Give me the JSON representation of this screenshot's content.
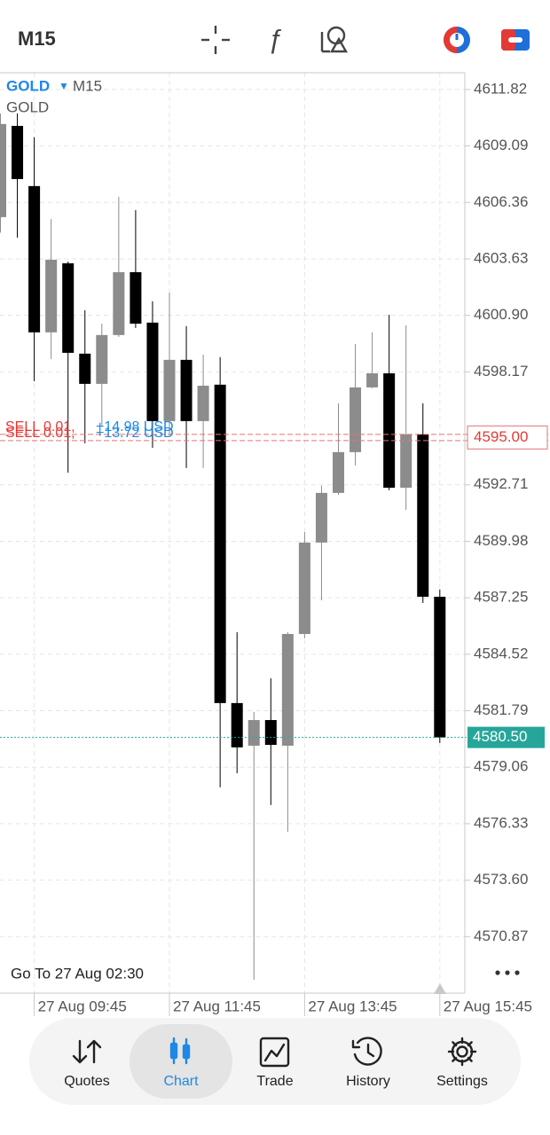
{
  "header": {
    "timeframe": "M15"
  },
  "chart_data": {
    "type": "candlestick",
    "symbol": "GOLD",
    "timeframe": "M15",
    "description": "GOLD",
    "open": [
      4605.65,
      4610.06,
      4607.15,
      4600.08,
      4603.42,
      4599.05,
      4597.59,
      4599.95,
      4602.99,
      4600.55,
      4595.79,
      4598.75,
      4595.79,
      4597.55,
      4582.16,
      4580.1,
      4581.34,
      4580.1,
      4585.5,
      4589.92,
      4592.32,
      4594.29,
      4597.42,
      4598.1,
      4592.57,
      4595.15,
      4587.3
    ],
    "high": [
      4610.66,
      4610.66,
      4609.51,
      4605.56,
      4603.5,
      4601.15,
      4600.5,
      4606.63,
      4605.99,
      4601.58,
      4602.0,
      4600.38,
      4599.0,
      4598.88,
      4585.59,
      4581.73,
      4583.36,
      4585.59,
      4590.43,
      4592.66,
      4596.65,
      4599.52,
      4600.08,
      4600.93,
      4600.42,
      4596.65,
      4587.65
    ],
    "low": [
      4604.9,
      4604.66,
      4597.72,
      4598.79,
      4593.3,
      4594.72,
      4595.58,
      4599.86,
      4600.29,
      4594.5,
      4595.15,
      4593.52,
      4593.52,
      4578.09,
      4578.77,
      4568.79,
      4577.23,
      4575.94,
      4585.29,
      4587.13,
      4592.23,
      4593.65,
      4597.38,
      4592.45,
      4591.5,
      4587.0,
      4580.23
    ],
    "close": [
      4610.15,
      4607.49,
      4600.08,
      4603.59,
      4599.09,
      4597.59,
      4599.95,
      4602.99,
      4600.5,
      4595.79,
      4598.75,
      4595.79,
      4597.5,
      4582.16,
      4580.02,
      4581.34,
      4580.14,
      4585.5,
      4589.92,
      4592.32,
      4594.29,
      4597.42,
      4598.1,
      4592.57,
      4595.15,
      4587.3,
      4580.5
    ],
    "up_color": "#8c8c8c",
    "down_color": "#000000",
    "ylim": [
      4568.14,
      4612.63
    ],
    "yticks": [
      4611.82,
      4609.09,
      4606.36,
      4603.63,
      {
        "value": 4600.9,
        "label": "4600.90"
      },
      4598.17,
      4592.71,
      4589.98,
      4587.25,
      4584.52,
      4581.79,
      4579.06,
      4576.33,
      {
        "value": 4573.6,
        "label": "4573.60"
      },
      4570.87
    ],
    "xticks": [
      {
        "value": 2,
        "label": "27 Aug 09:45"
      },
      {
        "value": 10,
        "label": "27 Aug 11:45"
      },
      {
        "value": 18,
        "label": "27 Aug 13:45"
      },
      {
        "value": 26,
        "label": "27 Aug 15:45"
      }
    ],
    "grid": true,
    "orders": [
      {
        "side": "SELL 0.01,",
        "profit": "+14.98 USD",
        "price": 4595.15
      },
      {
        "side": "SELL 0.01,",
        "profit": "+13.72 USD",
        "price": 4594.85
      }
    ],
    "order_price": {
      "value": 4595.0,
      "label": "4595.00"
    },
    "bid": {
      "value": 4580.5,
      "label": "4580.50"
    }
  },
  "goto": "Go To 27 Aug 02:30",
  "nav": {
    "items": [
      "Quotes",
      "Chart",
      "Trade",
      "History",
      "Settings"
    ],
    "active": 1
  }
}
